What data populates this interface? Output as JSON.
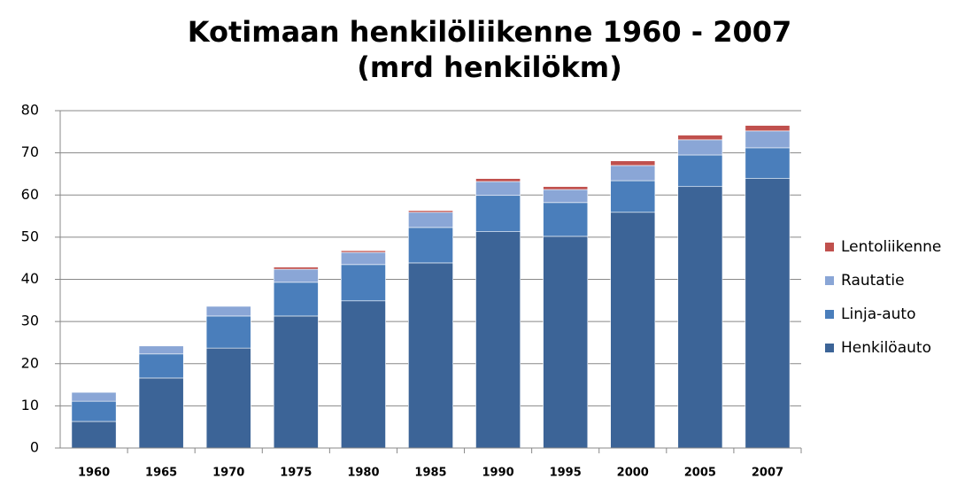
{
  "chart_data": {
    "type": "stacked_bar",
    "title": "Kotimaan henkilöliikenne 1960 - 2007",
    "subtitle": "(mrd henkilökm)",
    "categories": [
      "1960",
      "1965",
      "1970",
      "1975",
      "1980",
      "1985",
      "1990",
      "1995",
      "2000",
      "2005",
      "2007"
    ],
    "series": [
      {
        "name": "Henkilöauto",
        "color": "#3c6497",
        "values": [
          6.3,
          16.6,
          23.7,
          31.3,
          34.9,
          43.9,
          51.3,
          50.2,
          55.9,
          62.0,
          63.9
        ]
      },
      {
        "name": "Linja-auto",
        "color": "#4a7ebb",
        "values": [
          4.8,
          5.7,
          7.6,
          8.0,
          8.6,
          8.4,
          8.6,
          8.0,
          7.5,
          7.5,
          7.3
        ]
      },
      {
        "name": "Rautatie",
        "color": "#8aa6d6",
        "values": [
          2.1,
          1.9,
          2.3,
          3.1,
          2.9,
          3.6,
          3.3,
          3.1,
          3.6,
          3.6,
          4.0
        ]
      },
      {
        "name": "Lentoliikenne",
        "color": "#c0504d",
        "values": [
          0,
          0,
          0,
          0.5,
          0.4,
          0.4,
          0.7,
          0.7,
          1.1,
          1.1,
          1.3
        ]
      }
    ],
    "ylim": [
      0,
      80
    ],
    "yticks": [
      0,
      10,
      20,
      30,
      40,
      50,
      60,
      70,
      80
    ],
    "grid": true,
    "legend": "right"
  }
}
